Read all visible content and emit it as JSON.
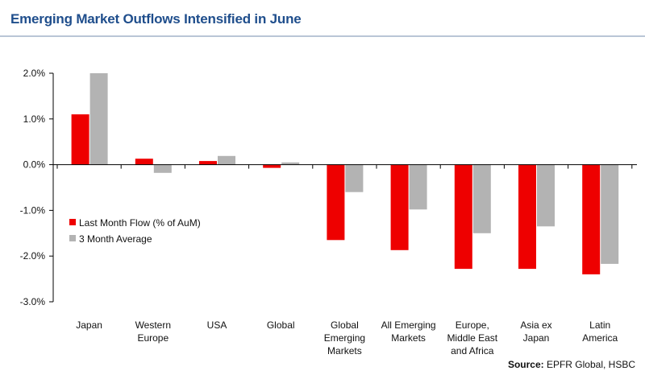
{
  "title": "Emerging Market Outflows Intensified in June",
  "source_label": "Source:",
  "source_text": " EPFR Global, HSBC",
  "chart_data": {
    "type": "bar",
    "title": "Emerging Market Outflows Intensified in June",
    "xlabel": "",
    "ylabel": "",
    "ylim": [
      -3.0,
      2.0
    ],
    "yticks": [
      "2.0%",
      "1.0%",
      "0.0%",
      "-1.0%",
      "-2.0%",
      "-3.0%"
    ],
    "ytick_values": [
      2.0,
      1.0,
      0.0,
      -1.0,
      -2.0,
      -3.0
    ],
    "grid": false,
    "legend_position": "left",
    "categories": [
      [
        "Japan"
      ],
      [
        "Western",
        "Europe"
      ],
      [
        "USA"
      ],
      [
        "Global"
      ],
      [
        "Global",
        "Emerging",
        "Markets"
      ],
      [
        "All Emerging",
        "Markets"
      ],
      [
        "Europe,",
        "Middle East",
        "and Africa"
      ],
      [
        "Asia ex",
        "Japan"
      ],
      [
        "Latin",
        "America"
      ]
    ],
    "series": [
      {
        "name": "Last Month Flow (% of AuM)",
        "color": "#ee0000",
        "values": [
          1.1,
          0.13,
          0.08,
          -0.07,
          -1.65,
          -1.87,
          -2.28,
          -2.28,
          -2.4
        ]
      },
      {
        "name": "3 Month Average",
        "color": "#b3b3b3",
        "values": [
          2.0,
          -0.18,
          0.19,
          0.05,
          -0.6,
          -0.98,
          -1.5,
          -1.35,
          -2.17
        ]
      }
    ]
  }
}
